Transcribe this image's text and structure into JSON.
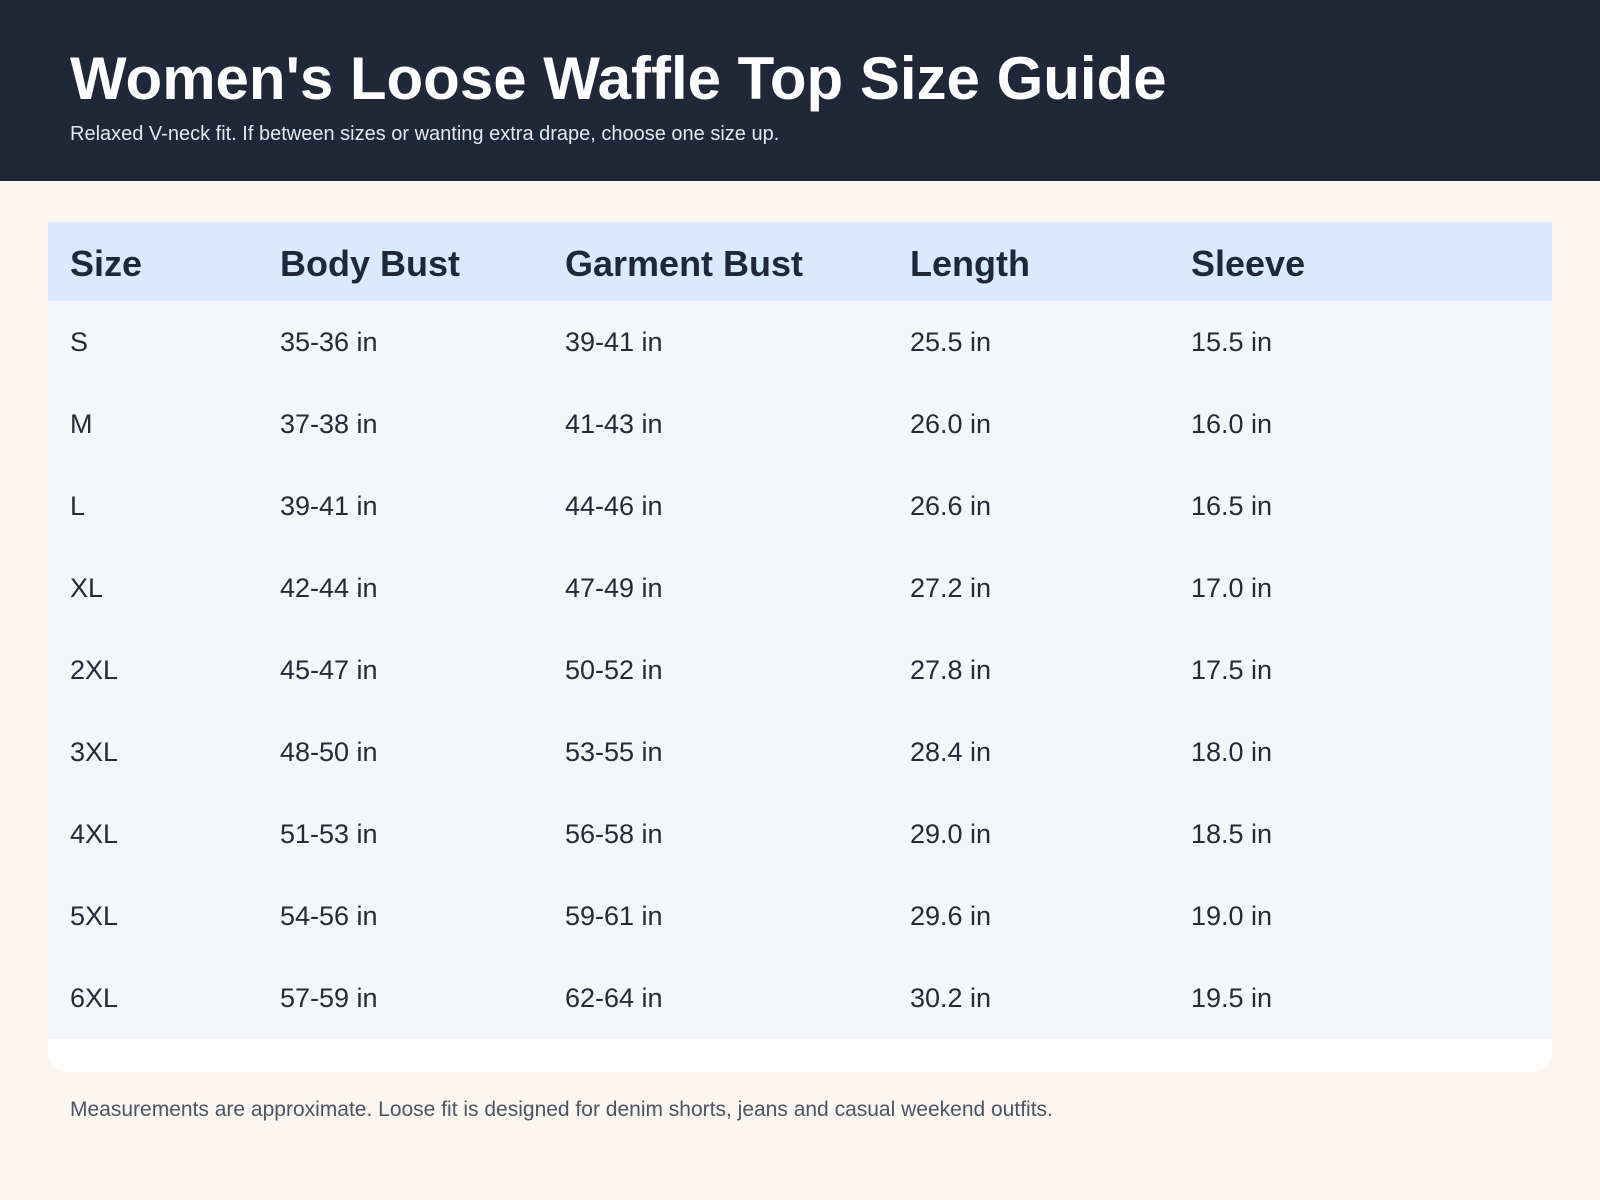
{
  "header": {
    "title": "Women's Loose Waffle Top Size Guide",
    "subtitle": "Relaxed V-neck fit. If between sizes or wanting extra drape, choose one size up."
  },
  "table": {
    "columns": [
      "Size",
      "Body Bust",
      "Garment Bust",
      "Length",
      "Sleeve"
    ],
    "rows": [
      [
        "S",
        "35-36 in",
        "39-41 in",
        "25.5 in",
        "15.5 in"
      ],
      [
        "M",
        "37-38 in",
        "41-43 in",
        "26.0 in",
        "16.0 in"
      ],
      [
        "L",
        "39-41 in",
        "44-46 in",
        "26.6 in",
        "16.5 in"
      ],
      [
        "XL",
        "42-44 in",
        "47-49 in",
        "27.2 in",
        "17.0 in"
      ],
      [
        "2XL",
        "45-47 in",
        "50-52 in",
        "27.8 in",
        "17.5 in"
      ],
      [
        "3XL",
        "48-50 in",
        "53-55 in",
        "28.4 in",
        "18.0 in"
      ],
      [
        "4XL",
        "51-53 in",
        "56-58 in",
        "29.0 in",
        "18.5 in"
      ],
      [
        "5XL",
        "54-56 in",
        "59-61 in",
        "29.6 in",
        "19.0 in"
      ],
      [
        "6XL",
        "57-59 in",
        "62-64 in",
        "30.2 in",
        "19.5 in"
      ]
    ]
  },
  "footer": {
    "note": "Measurements are approximate. Loose fit is designed for denim shorts, jeans and casual weekend outfits."
  },
  "colors": {
    "header_bg": "#1f2839",
    "table_header_bg": "#dbe9fe",
    "page_bg": "#fbf6ef",
    "stripe_bg": "#f4f6fa"
  }
}
